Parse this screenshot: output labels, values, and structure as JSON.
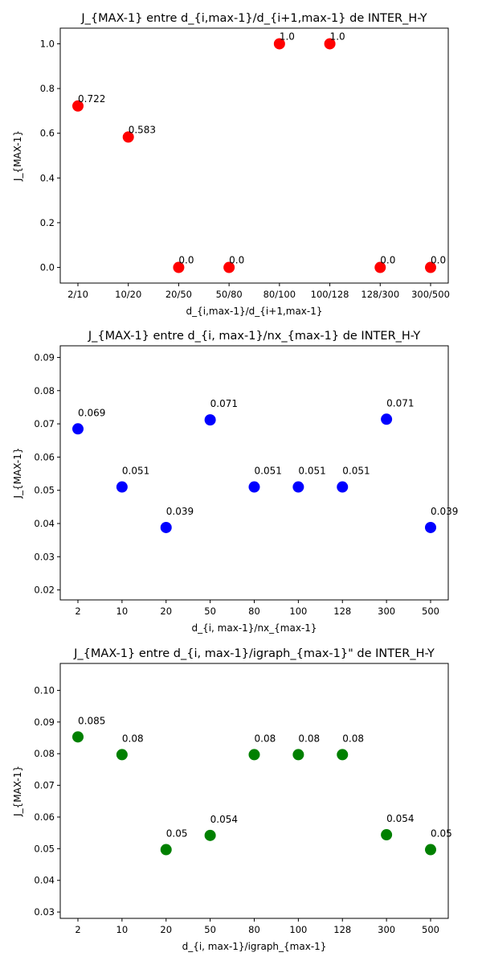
{
  "chart_data": [
    {
      "type": "scatter",
      "title": "J_{MAX-1} entre d_{i,max-1}/d_{i+1,max-1} de INTER_H-Y",
      "xlabel": "d_{i,max-1}/d_{i+1,max-1}",
      "ylabel": "J_{MAX-1}",
      "categories": [
        "2/10",
        "10/20",
        "20/50",
        "50/80",
        "80/100",
        "100/128",
        "128/300",
        "300/500"
      ],
      "values": [
        0.722,
        0.583,
        0.0,
        0.0,
        1.0,
        1.0,
        0.0,
        0.0
      ],
      "labels": [
        "0.722",
        "0.583",
        "0.0",
        "0.0",
        "1.0",
        "1.0",
        "0.0",
        "0.0"
      ],
      "ylim": [
        -0.07,
        1.07
      ],
      "yticks": [
        0.0,
        0.2,
        0.4,
        0.6,
        0.8,
        1.0
      ],
      "ytick_labels": [
        "0.0",
        "0.2",
        "0.4",
        "0.6",
        "0.8",
        "1.0"
      ],
      "color": "#ff0000",
      "grid": false
    },
    {
      "type": "scatter",
      "title": "J_{MAX-1} entre d_{i, max-1}/nx_{max-1} de INTER_H-Y",
      "xlabel": "d_{i, max-1}/nx_{max-1}",
      "ylabel": "J_{MAX-1}",
      "categories": [
        "2",
        "10",
        "20",
        "50",
        "80",
        "100",
        "128",
        "300",
        "500"
      ],
      "values": [
        0.0685,
        0.051,
        0.0388,
        0.0712,
        0.051,
        0.051,
        0.051,
        0.0714,
        0.0388
      ],
      "labels": [
        "0.069",
        "0.051",
        "0.039",
        "0.071",
        "0.051",
        "0.051",
        "0.051",
        "0.071",
        "0.039"
      ],
      "ylim": [
        0.017,
        0.0935
      ],
      "yticks": [
        0.02,
        0.03,
        0.04,
        0.05,
        0.06,
        0.07,
        0.08,
        0.09
      ],
      "ytick_labels": [
        "0.02",
        "0.03",
        "0.04",
        "0.05",
        "0.06",
        "0.07",
        "0.08",
        "0.09"
      ],
      "color": "#0000ff",
      "grid": false
    },
    {
      "type": "scatter",
      "title": "J_{MAX-1} entre d_{i, max-1}/igraph_{max-1}\" de INTER_H-Y",
      "xlabel": "d_{i, max-1}/igraph_{max-1}",
      "ylabel": "J_{MAX-1}",
      "categories": [
        "2",
        "10",
        "20",
        "50",
        "80",
        "100",
        "128",
        "300",
        "500"
      ],
      "values": [
        0.0853,
        0.0797,
        0.0497,
        0.0542,
        0.0797,
        0.0797,
        0.0797,
        0.0544,
        0.0497
      ],
      "labels": [
        "0.085",
        "0.08",
        "0.05",
        "0.054",
        "0.08",
        "0.08",
        "0.08",
        "0.054",
        "0.05"
      ],
      "ylim": [
        0.028,
        0.1085
      ],
      "yticks": [
        0.03,
        0.04,
        0.05,
        0.06,
        0.07,
        0.08,
        0.09,
        0.1
      ],
      "ytick_labels": [
        "0.03",
        "0.04",
        "0.05",
        "0.06",
        "0.07",
        "0.08",
        "0.09",
        "0.10"
      ],
      "color": "#008000",
      "grid": false
    }
  ]
}
